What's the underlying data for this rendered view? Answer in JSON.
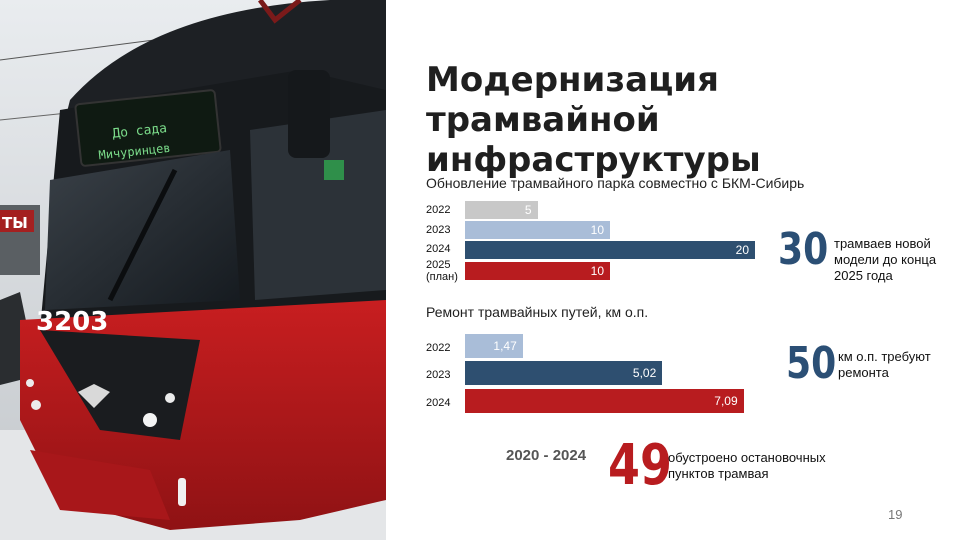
{
  "title": {
    "line1": "Модернизация трамвайной",
    "line2": "инфраструктуры"
  },
  "photo": {
    "tram_number": "3203",
    "display_line1": "До сада",
    "display_line2": "Мичуринцев",
    "sign_fragment": "ТЫ"
  },
  "chart_data": [
    {
      "type": "bar",
      "title": "Обновление трамвайного парка совместно с БКМ-Сибирь",
      "categories": [
        "2022",
        "2023",
        "2024",
        "2025\n(план)"
      ],
      "values": [
        5,
        10,
        20,
        10
      ],
      "labels": [
        "5",
        "10",
        "20",
        "10"
      ],
      "colors": [
        "#c8c8c8",
        "#a9bdd8",
        "#2e4f70",
        "#b81c1f"
      ]
    },
    {
      "type": "bar",
      "title": "Ремонт трамвайных путей, км о.п.",
      "categories": [
        "2022",
        "2023",
        "2024"
      ],
      "values": [
        1.47,
        5.02,
        7.09
      ],
      "labels": [
        "1,47",
        "5,02",
        "7,09"
      ],
      "colors": [
        "#a9bdd8",
        "#2e4f70",
        "#b81c1f"
      ]
    }
  ],
  "stats": {
    "trams": {
      "number": "30",
      "text_line1": "трамваев новой",
      "text_line2": "модели до конца",
      "text_line3": "2025 года",
      "color": "#2b4f75"
    },
    "repair": {
      "number": "50",
      "text_line1": "км о.п. требуют",
      "text_line2": "ремонта",
      "color": "#2b4f75"
    },
    "stops": {
      "period": "2020 - 2024",
      "number": "49",
      "text_line1": "обустроено остановочных",
      "text_line2": "пунктов трамвая",
      "color": "#b81c1f"
    }
  },
  "page_number": "19"
}
